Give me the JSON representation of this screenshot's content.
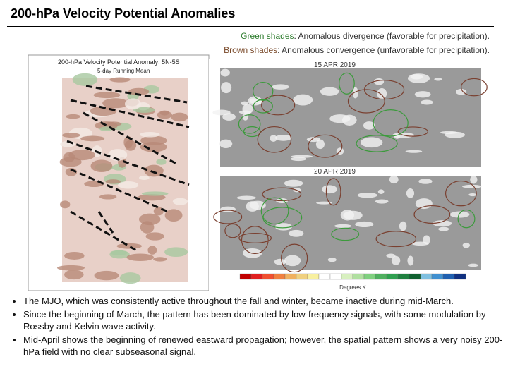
{
  "header": {
    "title": "200-hPa Velocity Potential Anomalies"
  },
  "legend": {
    "green": {
      "label": "Green shades",
      "text": ": Anomalous divergence (favorable for precipitation)."
    },
    "brown": {
      "label": "Brown shades",
      "text": ": Anomalous convergence (unfavorable for precipitation)."
    }
  },
  "figures": {
    "hovmoller_title": "200-hPa Velocity Potential Anomaly: 5N-5S",
    "hovmoller_subtitle": "5-day Running Mean",
    "map_dates": [
      "15 APR 2019",
      "20 APR 2019"
    ],
    "colorbar_unit": "Degrees K"
  },
  "bullets": [
    "The MJO, which was consistently active throughout the fall and winter, became inactive during mid-March.",
    "Since the beginning of March, the pattern has been dominated by low-frequency signals, with some modulation by Rossby and Kelvin wave activity.",
    "Mid-April shows the beginning of renewed eastward propagation; however, the spatial pattern shows a very noisy 200-hPa field with no clear subseasonal signal."
  ]
}
